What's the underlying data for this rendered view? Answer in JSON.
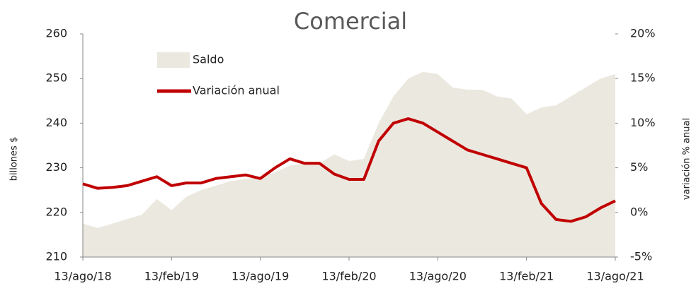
{
  "chart_data": {
    "type": "area-line",
    "title": "Comercial",
    "y_label": "billones $",
    "y2_label": "variación % anual",
    "categories": [
      "13/ago/18",
      null,
      null,
      null,
      null,
      null,
      "13/feb/19",
      null,
      null,
      null,
      null,
      null,
      "13/ago/19",
      null,
      null,
      null,
      null,
      null,
      "13/feb/20",
      null,
      null,
      null,
      null,
      null,
      "13/ago/20",
      null,
      null,
      null,
      null,
      null,
      "13/feb/21",
      null,
      null,
      null,
      null,
      null,
      "13/ago/21"
    ],
    "series": [
      {
        "name": "Saldo",
        "color": "#ebe8df",
        "axis": "y",
        "values": [
          217.5,
          216.5,
          217.5,
          218.5,
          219.5,
          223,
          220.5,
          223.5,
          225,
          226,
          227,
          227.5,
          228,
          229,
          230.5,
          231,
          231,
          233,
          231.5,
          232,
          240,
          246,
          250,
          251.5,
          251,
          248,
          247.5,
          247.5,
          246,
          245.5,
          242,
          243.5,
          244,
          246,
          248,
          250,
          251
        ]
      },
      {
        "name": "Variación anual",
        "color": "#c00000",
        "axis": "y2",
        "values": [
          3.2,
          2.7,
          2.8,
          3.0,
          3.5,
          4.0,
          3.0,
          3.3,
          3.3,
          3.8,
          4.0,
          4.2,
          3.8,
          5.0,
          6.0,
          5.5,
          5.5,
          4.3,
          3.7,
          3.7,
          8.0,
          10.0,
          10.5,
          10.0,
          9.0,
          8.0,
          7.0,
          6.5,
          6.0,
          5.5,
          5.0,
          1.0,
          -0.8,
          -1.0,
          -0.5,
          0.5,
          1.3
        ]
      }
    ],
    "ylim": [
      210,
      260
    ],
    "yticks": [
      210,
      220,
      230,
      240,
      250,
      260
    ],
    "y2lim": [
      -5,
      20
    ],
    "y2ticks": [
      {
        "value": -5,
        "label": "-5%"
      },
      {
        "value": 0,
        "label": "0%"
      },
      {
        "value": 5,
        "label": "5%"
      },
      {
        "value": 10,
        "label": "10%"
      },
      {
        "value": 15,
        "label": "15%"
      },
      {
        "value": 20,
        "label": "20%"
      }
    ],
    "grid": false,
    "legend": "top-left"
  }
}
